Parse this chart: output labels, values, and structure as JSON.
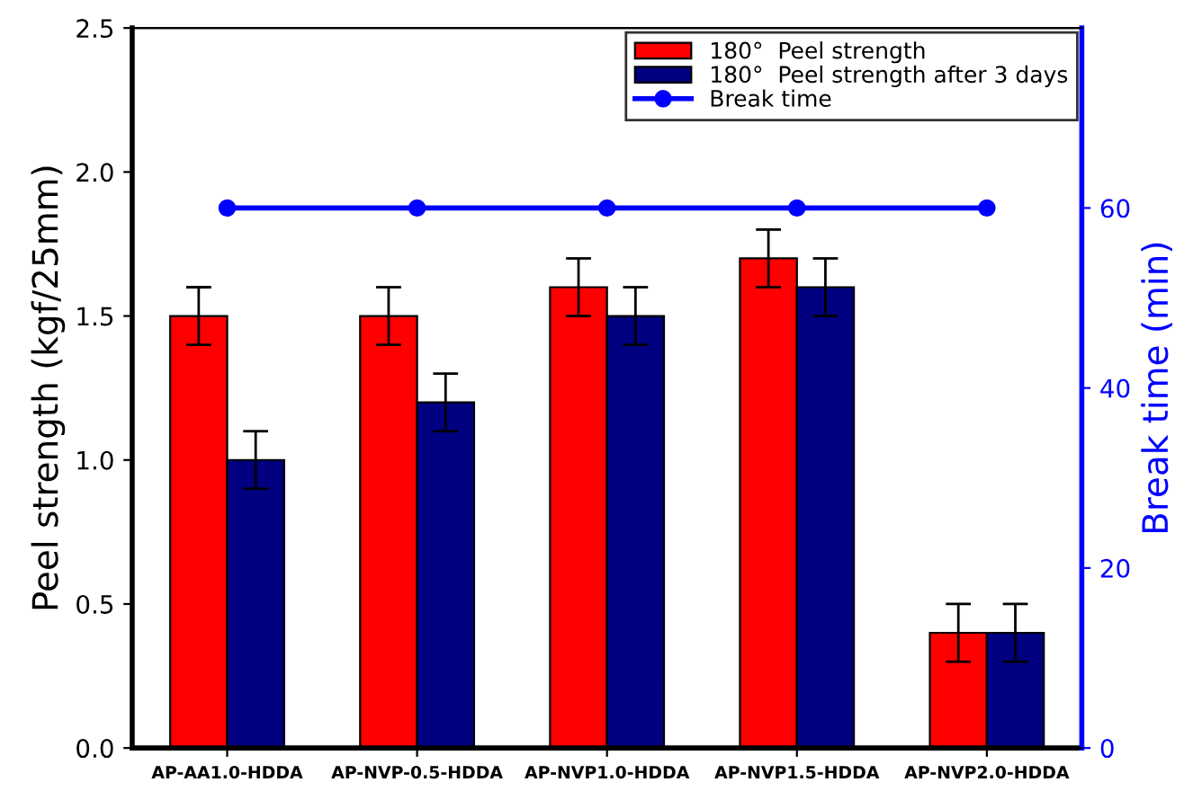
{
  "chart_data": {
    "type": "bar",
    "categories": [
      "AP-AA1.0-HDDA",
      "AP-NVP-0.5-HDDA",
      "AP-NVP1.0-HDDA",
      "AP-NVP1.5-HDDA",
      "AP-NVP2.0-HDDA"
    ],
    "series": [
      {
        "name": "180°  Peel strength",
        "color": "#ff0000",
        "values": [
          1.5,
          1.5,
          1.6,
          1.7,
          0.4
        ],
        "errors": [
          0.1,
          0.1,
          0.1,
          0.1,
          0.1
        ]
      },
      {
        "name": "180°  Peel strength after 3 days",
        "color": "#000080",
        "values": [
          1.0,
          1.2,
          1.5,
          1.6,
          0.4
        ],
        "errors": [
          0.1,
          0.1,
          0.1,
          0.1,
          0.1
        ]
      },
      {
        "name": "Break time",
        "type": "line",
        "axis": "y2",
        "color": "#0000ff",
        "marker": "circle",
        "values": [
          60,
          60,
          60,
          60,
          60
        ]
      }
    ],
    "ylabel": "Peel strength (kgf/25mm)",
    "y2label": "Break time (min)",
    "ylim": [
      0,
      2.5
    ],
    "yticks": [
      {
        "value": 0,
        "label": "0.0"
      },
      {
        "value": 0.5,
        "label": "0.5"
      },
      {
        "value": 1,
        "label": "1.0"
      },
      {
        "value": 1.5,
        "label": "1.5"
      },
      {
        "value": 2,
        "label": "2.0"
      },
      {
        "value": 2.5,
        "label": "2.5"
      }
    ],
    "y2lim": [
      0,
      80
    ],
    "y2ticks": [
      0,
      20,
      40,
      60
    ],
    "legend": "top right"
  }
}
